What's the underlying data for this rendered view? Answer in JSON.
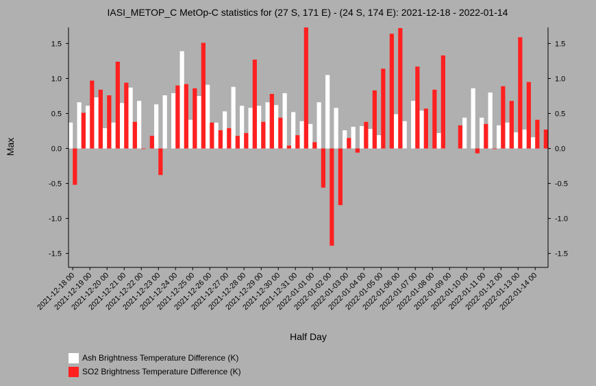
{
  "chart_data": {
    "type": "bar",
    "title": "IASI_METOP_C MetOp-C statistics for (27 S, 171 E) - (24 S, 174 E): 2021-12-18 - 2022-01-14",
    "xlabel": "Half Day",
    "ylabel": "Max",
    "ylim": [
      -1.7,
      1.73
    ],
    "yticks": [
      -1.5,
      -1.0,
      -0.5,
      0.0,
      0.5,
      1.0,
      1.5
    ],
    "ytick_labels": [
      "-1.5",
      "-1.0",
      "-0.5",
      "0.0",
      "0.5",
      "1.0",
      "1.5"
    ],
    "grid": false,
    "legend_position": "bottom-left",
    "categories": [
      "2021-12-18 00",
      "2021-12-18 12",
      "2021-12-19 00",
      "2021-12-19 12",
      "2021-12-20 00",
      "2021-12-20 12",
      "2021-12-21 00",
      "2021-12-21 12",
      "2021-12-22 00",
      "2021-12-22 12",
      "2021-12-23 00",
      "2021-12-23 12",
      "2021-12-24 00",
      "2021-12-24 12",
      "2021-12-25 00",
      "2021-12-25 12",
      "2021-12-26 00",
      "2021-12-26 12",
      "2021-12-27 00",
      "2021-12-27 12",
      "2021-12-28 00",
      "2021-12-28 12",
      "2021-12-29 00",
      "2021-12-29 12",
      "2021-12-30 00",
      "2021-12-30 12",
      "2021-12-31 00",
      "2021-12-31 12",
      "2022-01-01 00",
      "2022-01-01 12",
      "2022-01-02 00",
      "2022-01-02 12",
      "2022-01-03 00",
      "2022-01-03 12",
      "2022-01-04 00",
      "2022-01-04 12",
      "2022-01-05 00",
      "2022-01-05 12",
      "2022-01-06 00",
      "2022-01-06 12",
      "2022-01-07 00",
      "2022-01-07 12",
      "2022-01-08 00",
      "2022-01-08 12",
      "2022-01-09 00",
      "2022-01-09 12",
      "2022-01-10 00",
      "2022-01-10 12",
      "2022-01-11 00",
      "2022-01-11 12",
      "2022-01-12 00",
      "2022-01-12 12",
      "2022-01-13 00",
      "2022-01-13 12",
      "2022-01-14 00",
      "2022-01-14 12"
    ],
    "xtick_labels": [
      "2021-12-18 00",
      "2021-12-19 00",
      "2021-12-20 00",
      "2021-12-21 00",
      "2021-12-22 00",
      "2021-12-23 00",
      "2021-12-24 00",
      "2021-12-25 00",
      "2021-12-26 00",
      "2021-12-27 00",
      "2021-12-28 00",
      "2021-12-29 00",
      "2021-12-30 00",
      "2021-12-31 00",
      "2022-01-01 00",
      "2022-01-02 00",
      "2022-01-03 00",
      "2022-01-04 00",
      "2022-01-05 00",
      "2022-01-06 00",
      "2022-01-07 00",
      "2022-01-08 00",
      "2022-01-09 00",
      "2022-01-10 00",
      "2022-01-11 00",
      "2022-01-12 00",
      "2022-01-13 00",
      "2022-01-14 00"
    ],
    "series": [
      {
        "name": "Ash Brightness Temperature Difference (K)",
        "color": "#ffffff",
        "values": [
          0.37,
          0.66,
          0.61,
          0.73,
          0.29,
          0.37,
          0.65,
          0.87,
          0.68,
          null,
          0.63,
          0.76,
          0.79,
          1.39,
          0.41,
          0.75,
          0.91,
          0.37,
          0.53,
          0.88,
          0.61,
          0.58,
          0.61,
          0.66,
          0.62,
          0.79,
          0.52,
          0.39,
          0.35,
          0.66,
          1.05,
          0.58,
          0.26,
          0.31,
          0.32,
          0.28,
          0.19,
          null,
          0.49,
          0.39,
          0.68,
          0.54,
          null,
          0.22,
          null,
          null,
          0.44,
          0.86,
          0.44,
          0.8,
          0.33,
          0.37,
          0.23,
          0.27,
          0.16,
          null
        ]
      },
      {
        "name": "SO2 Brightness Temperature Difference (K)",
        "color": "#ff2020",
        "values": [
          -0.52,
          0.51,
          0.97,
          0.84,
          0.76,
          1.24,
          0.94,
          0.38,
          0.0,
          0.18,
          -0.38,
          null,
          0.9,
          0.92,
          0.86,
          1.51,
          0.37,
          0.26,
          0.29,
          0.18,
          0.22,
          1.27,
          0.38,
          0.78,
          0.44,
          0.04,
          0.19,
          1.73,
          0.09,
          -0.56,
          -1.39,
          -0.81,
          0.15,
          -0.06,
          0.38,
          0.83,
          1.14,
          1.64,
          1.72,
          null,
          1.17,
          0.57,
          0.84,
          1.33,
          null,
          0.33,
          null,
          -0.07,
          0.35,
          0.0,
          0.89,
          0.68,
          1.59,
          0.95,
          0.41,
          0.27
        ]
      }
    ]
  }
}
